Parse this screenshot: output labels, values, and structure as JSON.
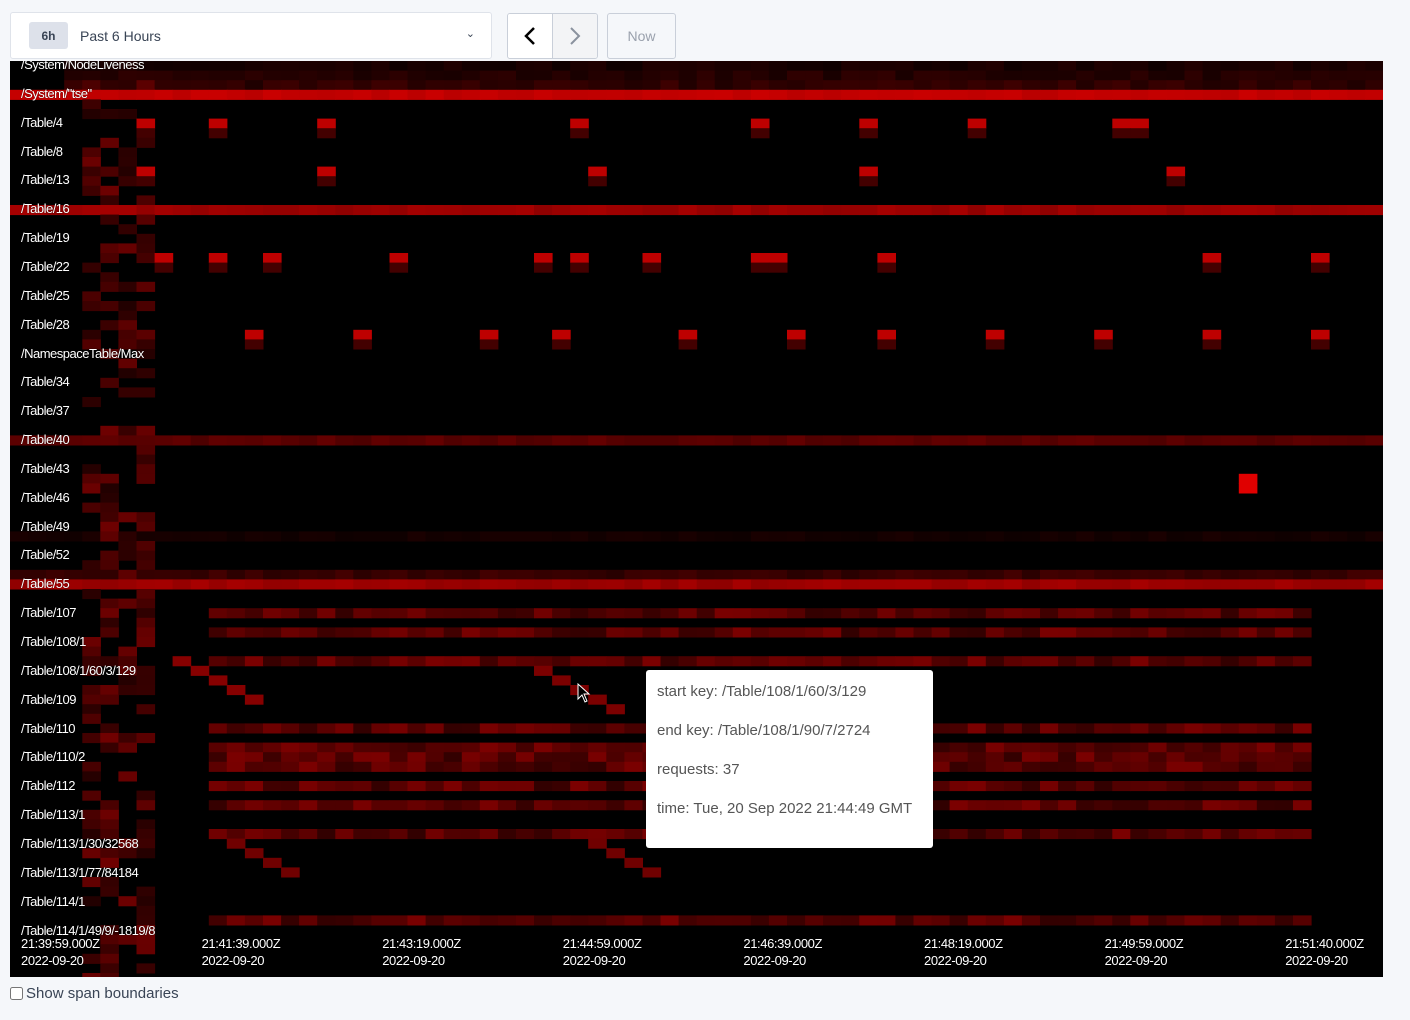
{
  "time_range": {
    "badge": "6h",
    "label": "Past 6 Hours",
    "icon": "chevron-down-icon"
  },
  "nav": {
    "prev_icon": "chevron-left-icon",
    "next_icon": "chevron-right-icon",
    "now_label": "Now"
  },
  "key_labels": [
    "/System/NodeLiveness",
    "/System/\"tse\"",
    "/Table/4",
    "/Table/8",
    "/Table/13",
    "/Table/16",
    "/Table/19",
    "/Table/22",
    "/Table/25",
    "/Table/28",
    "/NamespaceTable/Max",
    "/Table/34",
    "/Table/37",
    "/Table/40",
    "/Table/43",
    "/Table/46",
    "/Table/49",
    "/Table/52",
    "/Table/55",
    "/Table/107",
    "/Table/108/1",
    "/Table/108/1/60/3/129",
    "/Table/109",
    "/Table/110",
    "/Table/110/2",
    "/Table/112",
    "/Table/113/1",
    "/Table/113/1/30/32568",
    "/Table/113/1/77/84184",
    "/Table/114/1",
    "/Table/114/1/49/9/-1819/8"
  ],
  "time_labels": [
    {
      "time": "21:39:59.000Z",
      "date": "2022-09-20"
    },
    {
      "time": "21:41:39.000Z",
      "date": "2022-09-20"
    },
    {
      "time": "21:43:19.000Z",
      "date": "2022-09-20"
    },
    {
      "time": "21:44:59.000Z",
      "date": "2022-09-20"
    },
    {
      "time": "21:46:39.000Z",
      "date": "2022-09-20"
    },
    {
      "time": "21:48:19.000Z",
      "date": "2022-09-20"
    },
    {
      "time": "21:49:59.000Z",
      "date": "2022-09-20"
    },
    {
      "time": "21:51:40.000Z",
      "date": "2022-09-20"
    }
  ],
  "tooltip": {
    "start_key": "start key: /Table/108/1/60/3/129",
    "end_key": "end key: /Table/108/1/90/7/2724",
    "requests": "requests: 37",
    "time": "time: Tue, 20 Sep 2022 21:44:49 GMT"
  },
  "footer": {
    "show_span_boundaries": "Show span boundaries",
    "checked": false
  },
  "colors": {
    "heat_max": "#e00000",
    "background": "#000000"
  }
}
